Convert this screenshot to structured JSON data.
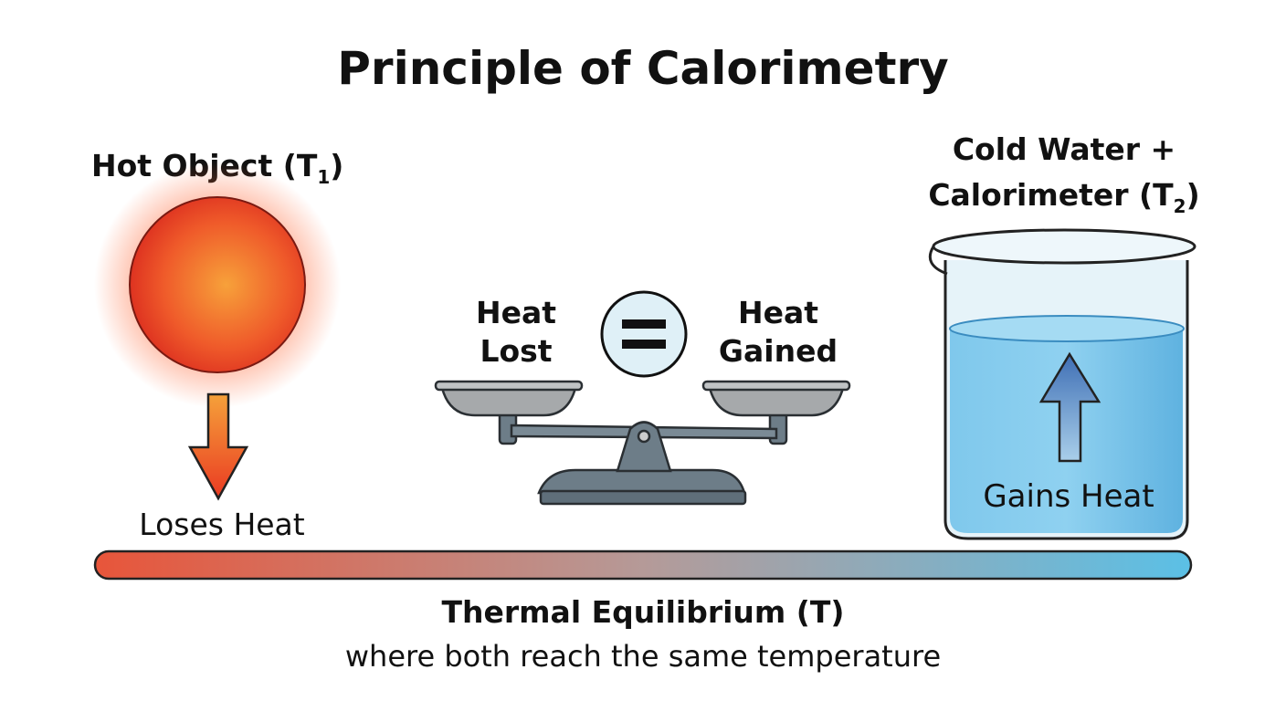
{
  "title": "Principle of Calorimetry",
  "hot_object": {
    "label": "Hot Object (T",
    "subscript": "1",
    "label_end": ")",
    "caption": "Loses Heat"
  },
  "cold": {
    "line1": "Cold Water +",
    "line2": "Calorimeter (T",
    "subscript": "2",
    "line2_end": ")",
    "caption": "Gains Heat"
  },
  "balance": {
    "left_line1": "Heat",
    "left_line2": "Lost",
    "right_line1": "Heat",
    "right_line2": "Gained",
    "symbol": "equals-icon"
  },
  "equilibrium": {
    "title": "Thermal Equilibrium (T)",
    "subtitle": "where both reach the same temperature"
  },
  "colors": {
    "hot": "#e8553a",
    "cold": "#5bc0e6",
    "scale": "#5f6f7a"
  }
}
